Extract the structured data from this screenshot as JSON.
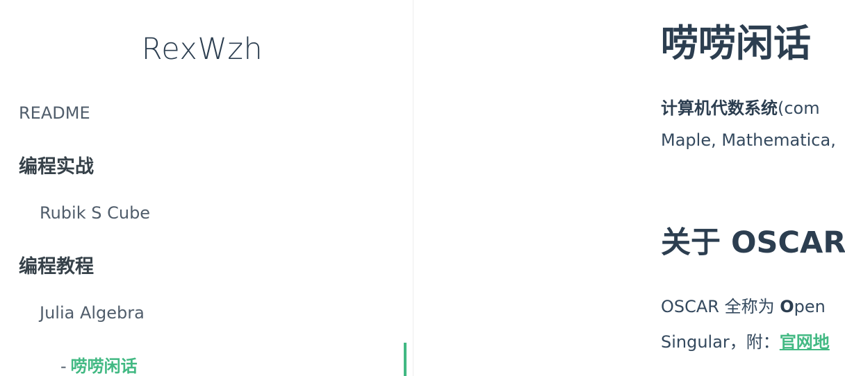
{
  "sidebar": {
    "app_name": "RexWzh",
    "readme": "README",
    "section1": "编程实战",
    "section1_item": "Rubik S Cube",
    "section2": "编程教程",
    "section2_item": "Julia Algebra",
    "active_dash": "-",
    "active_item": "唠唠闲话"
  },
  "content": {
    "title": "唠唠闲话",
    "p1_bold": "计算机代数系统",
    "p1_rest": "(com",
    "p1_line2": "Maple, Mathematica,",
    "h2": "关于 OSCAR",
    "p2_start": "OSCAR 全称为 ",
    "p2_bold": "O",
    "p2_rest": "pen",
    "p2_line2": "Singular，附：",
    "p2_link": "官网地"
  },
  "colors": {
    "accent": "#42b983",
    "heading": "#2c3e50",
    "text": "#34495e"
  }
}
